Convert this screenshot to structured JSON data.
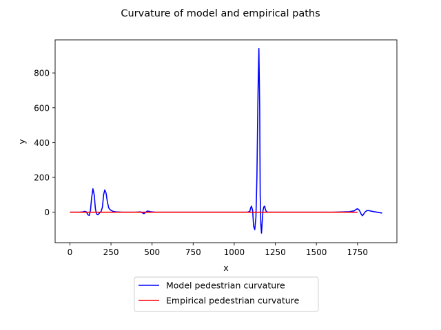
{
  "chart_data": {
    "type": "line",
    "title": "Curvature of model and empirical paths",
    "xlabel": "x",
    "ylabel": "y",
    "xlim": [
      -90,
      1990
    ],
    "ylim": [
      -175,
      990
    ],
    "xticks": [
      0,
      250,
      500,
      750,
      1000,
      1250,
      1500,
      1750
    ],
    "yticks": [
      0,
      200,
      400,
      600,
      800
    ],
    "grid": false,
    "legend_position": "below-center",
    "series": [
      {
        "name": "Model pedestrian curvature",
        "color": "#0000ff",
        "x": [
          0,
          60,
          80,
          90,
          100,
          110,
          118,
          125,
          132,
          140,
          148,
          155,
          162,
          170,
          180,
          190,
          198,
          205,
          212,
          220,
          228,
          236,
          244,
          252,
          262,
          280,
          320,
          400,
          430,
          440,
          450,
          458,
          465,
          472,
          480,
          490,
          520,
          600,
          800,
          1000,
          1080,
          1095,
          1100,
          1105,
          1112,
          1118,
          1125,
          1132,
          1138,
          1145,
          1150,
          1155,
          1158,
          1162,
          1166,
          1170,
          1175,
          1180,
          1185,
          1190,
          1195,
          1200,
          1205,
          1210,
          1218,
          1230,
          1260,
          1400,
          1600,
          1700,
          1730,
          1740,
          1750,
          1758,
          1765,
          1772,
          1780,
          1787,
          1795,
          1805,
          1815,
          1840,
          1870,
          1900
        ],
        "y": [
          0,
          0,
          2,
          5,
          2,
          -15,
          -18,
          10,
          80,
          135,
          100,
          20,
          -10,
          -15,
          -5,
          5,
          30,
          100,
          128,
          110,
          60,
          25,
          15,
          10,
          5,
          2,
          0,
          0,
          2,
          -3,
          -8,
          -3,
          3,
          7,
          5,
          3,
          0,
          0,
          0,
          0,
          0,
          5,
          25,
          35,
          10,
          -80,
          -100,
          -30,
          200,
          700,
          940,
          600,
          100,
          -70,
          -120,
          -60,
          10,
          30,
          35,
          15,
          5,
          2,
          0,
          0,
          0,
          0,
          0,
          0,
          0,
          3,
          8,
          15,
          20,
          15,
          5,
          -10,
          -20,
          -12,
          0,
          8,
          10,
          5,
          0,
          -5
        ]
      },
      {
        "name": "Empirical pedestrian curvature",
        "color": "#ff0000",
        "x": [
          0,
          200,
          400,
          600,
          800,
          1000,
          1200,
          1400,
          1600,
          1750
        ],
        "y": [
          0,
          0,
          0,
          0,
          0,
          0,
          0,
          0,
          0,
          0
        ]
      }
    ]
  }
}
